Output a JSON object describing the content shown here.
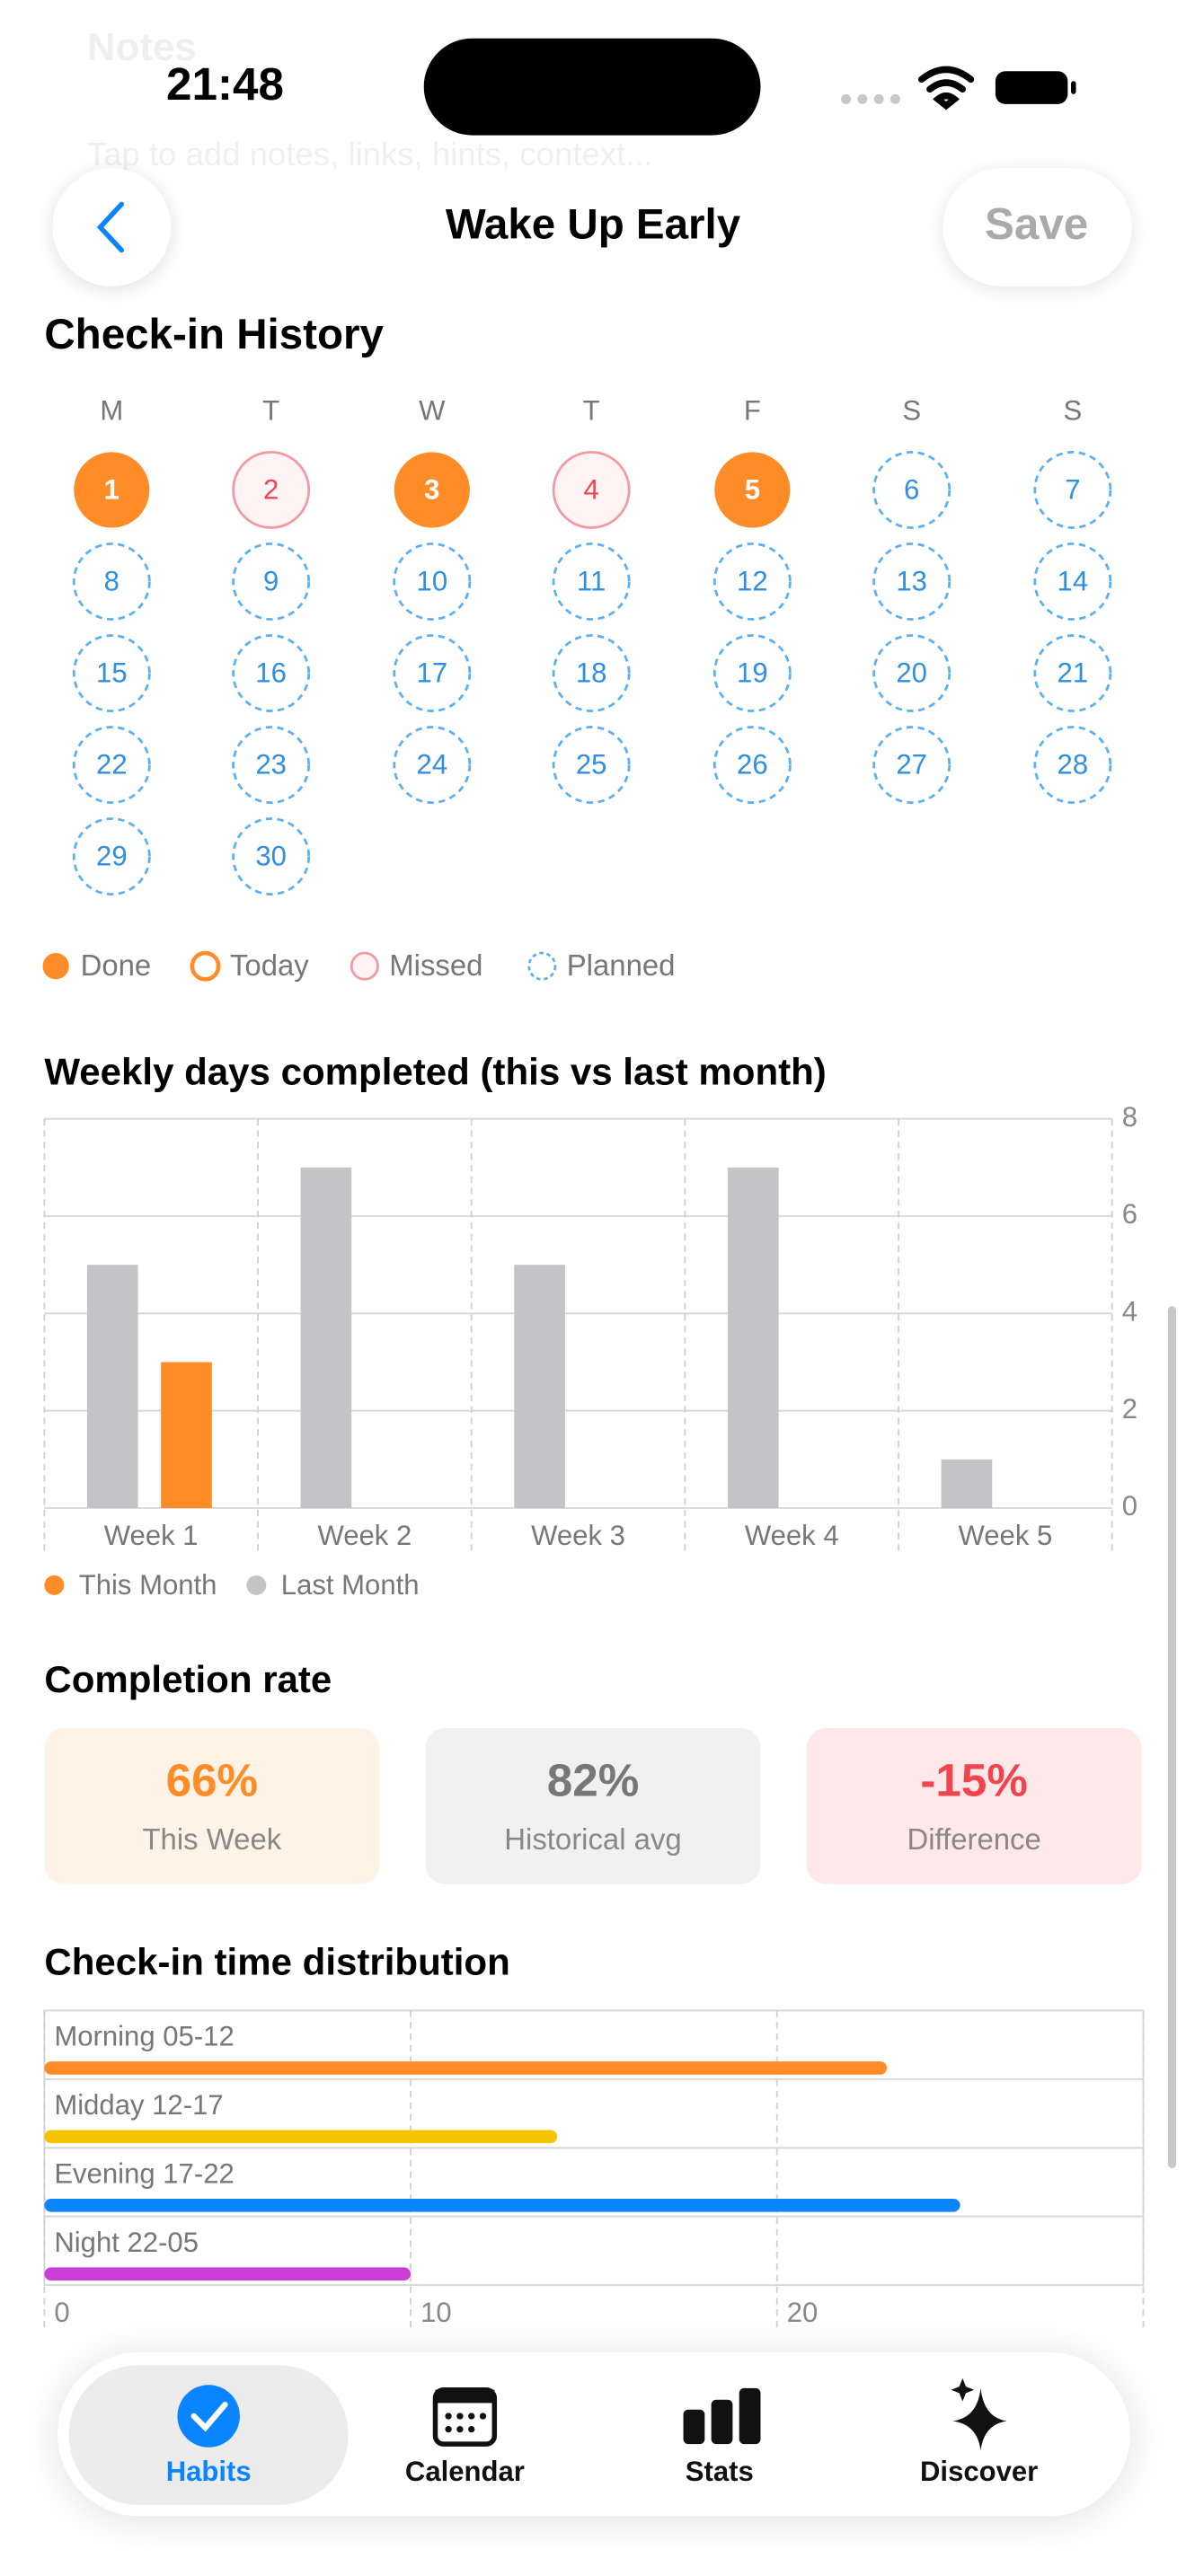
{
  "status_bar": {
    "time": "21:48"
  },
  "background": {
    "notes_title": "Notes",
    "notes_hint": "Tap to add notes, links, hints, context..."
  },
  "header": {
    "title": "Wake Up Early",
    "save": "Save"
  },
  "history": {
    "title": "Check-in History",
    "weekdays": [
      "M",
      "T",
      "W",
      "T",
      "F",
      "S",
      "S"
    ],
    "days": [
      {
        "label": "1",
        "status": "done"
      },
      {
        "label": "2",
        "status": "missed"
      },
      {
        "label": "3",
        "status": "done"
      },
      {
        "label": "4",
        "status": "missed"
      },
      {
        "label": "5",
        "status": "done"
      },
      {
        "label": "6",
        "status": "planned"
      },
      {
        "label": "7",
        "status": "planned"
      },
      {
        "label": "8",
        "status": "planned"
      },
      {
        "label": "9",
        "status": "planned"
      },
      {
        "label": "10",
        "status": "planned"
      },
      {
        "label": "11",
        "status": "planned"
      },
      {
        "label": "12",
        "status": "planned"
      },
      {
        "label": "13",
        "status": "planned"
      },
      {
        "label": "14",
        "status": "planned"
      },
      {
        "label": "15",
        "status": "planned"
      },
      {
        "label": "16",
        "status": "planned"
      },
      {
        "label": "17",
        "status": "planned"
      },
      {
        "label": "18",
        "status": "planned"
      },
      {
        "label": "19",
        "status": "planned"
      },
      {
        "label": "20",
        "status": "planned"
      },
      {
        "label": "21",
        "status": "planned"
      },
      {
        "label": "22",
        "status": "planned"
      },
      {
        "label": "23",
        "status": "planned"
      },
      {
        "label": "24",
        "status": "planned"
      },
      {
        "label": "25",
        "status": "planned"
      },
      {
        "label": "26",
        "status": "planned"
      },
      {
        "label": "27",
        "status": "planned"
      },
      {
        "label": "28",
        "status": "planned"
      },
      {
        "label": "29",
        "status": "planned"
      },
      {
        "label": "30",
        "status": "planned"
      }
    ],
    "legend": [
      {
        "label": "Done",
        "status": "done"
      },
      {
        "label": "Today",
        "status": "today"
      },
      {
        "label": "Missed",
        "status": "missed"
      },
      {
        "label": "Planned",
        "status": "planned"
      }
    ]
  },
  "chart_data": [
    {
      "type": "bar",
      "title": "Weekly days completed (this vs last month)",
      "categories": [
        "Week 1",
        "Week 2",
        "Week 3",
        "Week 4",
        "Week 5"
      ],
      "series": [
        {
          "name": "This Month",
          "color": "#ff8c26",
          "values": [
            3,
            null,
            null,
            null,
            null
          ]
        },
        {
          "name": "Last Month",
          "color": "#c4c4c6",
          "values": [
            5,
            7,
            5,
            7,
            1
          ]
        }
      ],
      "ylim": [
        0,
        8
      ],
      "yticks": [
        0,
        2,
        4,
        6,
        8
      ],
      "grid": true
    },
    {
      "type": "hbar",
      "title": "Check-in time distribution",
      "categories": [
        "Morning 05-12",
        "Midday 12-17",
        "Evening 17-22",
        "Night 22-05"
      ],
      "values": [
        23,
        14,
        25,
        10
      ],
      "colors": [
        "#ff8c26",
        "#f5c400",
        "#0a84ff",
        "#c93fd6"
      ],
      "xlim": [
        0,
        30
      ],
      "xticks": [
        0,
        10,
        20
      ],
      "grid": true
    }
  ],
  "completion": {
    "title": "Completion rate",
    "cards": [
      {
        "value": "66%",
        "label": "This Week"
      },
      {
        "value": "82%",
        "label": "Historical avg"
      },
      {
        "value": "-15%",
        "label": "Difference"
      }
    ]
  },
  "tabs": [
    {
      "label": "Habits"
    },
    {
      "label": "Calendar"
    },
    {
      "label": "Stats"
    },
    {
      "label": "Discover"
    }
  ]
}
